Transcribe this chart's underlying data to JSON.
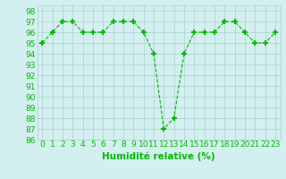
{
  "x": [
    0,
    1,
    2,
    3,
    4,
    5,
    6,
    7,
    8,
    9,
    10,
    11,
    12,
    13,
    14,
    15,
    16,
    17,
    18,
    19,
    20,
    21,
    22,
    23
  ],
  "y": [
    95,
    96,
    97,
    97,
    96,
    96,
    96,
    97,
    97,
    97,
    96,
    94,
    87,
    88,
    94,
    96,
    96,
    96,
    97,
    97,
    96,
    95,
    95,
    96
  ],
  "line_color": "#00bb00",
  "marker": "+",
  "marker_size": 5,
  "marker_lw": 1.5,
  "bg_color": "#d4efef",
  "grid_color": "#aacfcf",
  "xlabel": "Humidité relative (%)",
  "xlabel_color": "#00bb00",
  "xlabel_fontsize": 7.5,
  "tick_color": "#00bb00",
  "tick_fontsize": 6.5,
  "ylim": [
    86,
    98.5
  ],
  "xlim": [
    -0.5,
    23.5
  ],
  "yticks": [
    86,
    87,
    88,
    89,
    90,
    91,
    92,
    93,
    94,
    95,
    96,
    97,
    98
  ],
  "xticks": [
    0,
    1,
    2,
    3,
    4,
    5,
    6,
    7,
    8,
    9,
    10,
    11,
    12,
    13,
    14,
    15,
    16,
    17,
    18,
    19,
    20,
    21,
    22,
    23
  ]
}
